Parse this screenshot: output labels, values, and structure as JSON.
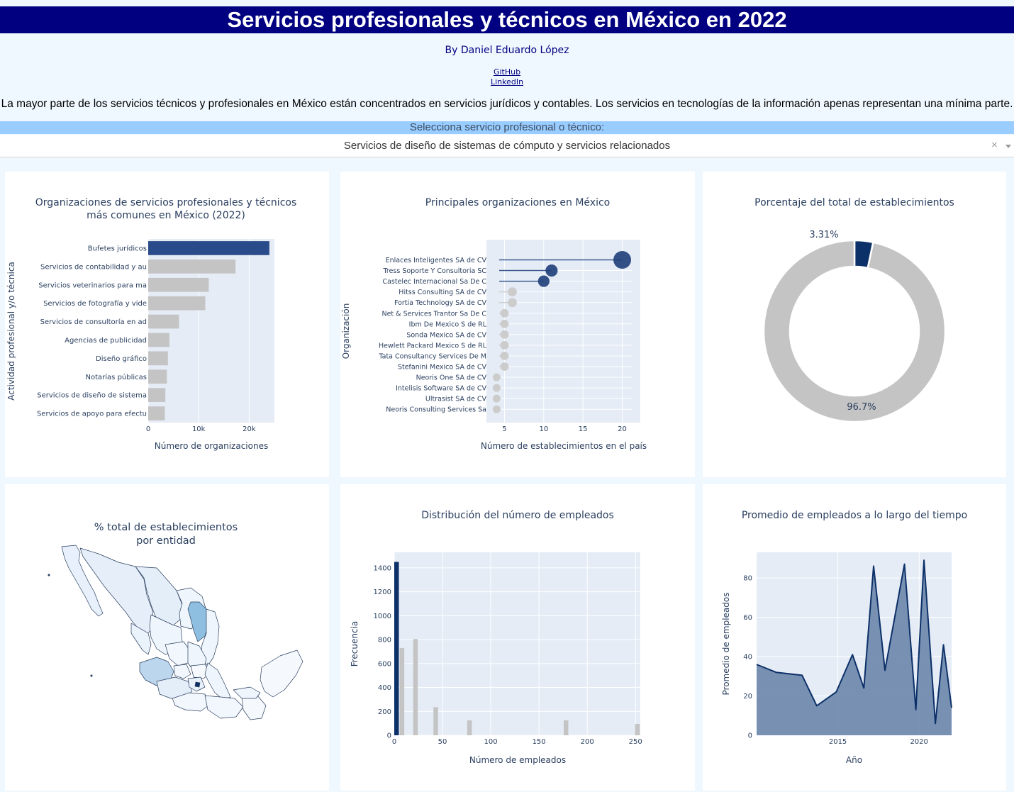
{
  "header": {
    "title": "Servicios profesionales y técnicos en México en 2022",
    "byline": "By Daniel Eduardo López",
    "github_label": "GitHub",
    "linkedin_label": "LinkedIn",
    "description": "La mayor parte de los servicios técnicos y profesionales en México están concentrados en servicios jurídicos y contables. Los servicios en tecnologías de la información apenas representan una mínima parte."
  },
  "selector": {
    "label": "Selecciona servicio profesional o técnico:",
    "value": "Servicios de diseño de sistemas de cómputo y servicios relacionados",
    "clear_glyph": "×"
  },
  "colors": {
    "highlight": "#0c3068",
    "bar_highlight": "#2a4b8a",
    "muted": "#c4c4c4",
    "plot_bg": "#e5ecf6",
    "title_bar": "#000080"
  },
  "chart_data": [
    {
      "type": "bar",
      "orientation": "horizontal",
      "title_lines": [
        "Organizaciones de servicios profesionales y técnicos",
        "más comunes en México (2022)"
      ],
      "xlabel": "Número de organizaciones",
      "ylabel": "Actividad profesional y/o técnica",
      "categories": [
        "Bufetes jurídicos",
        "Servicios de contabilidad y au",
        "Servicios veterinarios para ma",
        "Servicios de fotografía y vide",
        "Servicios de consultoría en ad",
        "Agencias de publicidad",
        "Diseño gráfico",
        "Notarías públicas",
        "Servicios de diseño de sistema",
        "Servicios de apoyo para efectu"
      ],
      "values": [
        24000,
        17300,
        12000,
        11300,
        6100,
        4200,
        3900,
        3700,
        3400,
        3300
      ],
      "highlight_index": 0,
      "xlim": [
        0,
        25000
      ],
      "xticks": [
        0,
        10000,
        20000
      ],
      "xtick_labels": [
        "0",
        "10k",
        "20k"
      ]
    },
    {
      "type": "scatter",
      "subtype": "lollipop",
      "title": "Principales organizaciones en México",
      "xlabel": "Número de establecimientos en el país",
      "ylabel": "Organización",
      "categories": [
        "Enlaces Inteligentes SA de CV",
        "Tress Soporte Y Consultoria SC",
        "Castelec Internacional Sa De C",
        "Hitss Consulting SA de CV",
        "Fortia Technology SA de CV",
        "Net & Services Trantor Sa De C",
        "Ibm De Mexico S de RL",
        "Sonda Mexico SA de CV",
        "Hewlett Packard Mexico S de RL",
        "Tata Consultancy Services De M",
        "Stefanini Mexico SA de CV",
        "Neoris One SA de CV",
        "Intelisis Software SA de CV",
        "Ultrasist SA de CV",
        "Neoris Consulting Services Sa"
      ],
      "values": [
        20,
        11,
        10,
        6,
        6,
        5,
        5,
        5,
        5,
        5,
        5,
        4,
        4,
        4,
        4
      ],
      "highlight_top": 3,
      "xlim": [
        2.7,
        22.3
      ],
      "xticks": [
        5,
        10,
        15,
        20
      ]
    },
    {
      "type": "pie",
      "subtype": "donut",
      "title": "Porcentaje del total de establecimientos",
      "slices": [
        {
          "label": "3.31%",
          "value": 3.31,
          "color": "#0c3068"
        },
        {
          "label": "96.7%",
          "value": 96.69,
          "color": "#c4c4c4"
        }
      ]
    },
    {
      "type": "map",
      "subtype": "choropleth",
      "title_lines": [
        "% total de establecimientos",
        "por entidad"
      ]
    },
    {
      "type": "bar",
      "subtype": "histogram",
      "title": "Distribución del número de empleados",
      "xlabel": "Número de empleados",
      "ylabel": "Frecuencia",
      "bins": [
        {
          "x": 0,
          "value": 1450,
          "highlight": true
        },
        {
          "x": 8,
          "value": 730
        },
        {
          "x": 22,
          "value": 805
        },
        {
          "x": 43,
          "value": 235
        },
        {
          "x": 78,
          "value": 125
        },
        {
          "x": 178,
          "value": 125
        },
        {
          "x": 252,
          "value": 95
        }
      ],
      "xlim": [
        0,
        255
      ],
      "ylim": [
        0,
        1530
      ],
      "xticks": [
        0,
        50,
        100,
        150,
        200,
        250
      ],
      "yticks": [
        0,
        200,
        400,
        600,
        800,
        1000,
        1200,
        1400
      ]
    },
    {
      "type": "area",
      "title": "Promedio de empleados a lo largo del tiempo",
      "xlabel": "Año",
      "ylabel": "Promedio de empleados",
      "x": [
        2010,
        2011.2,
        2012.8,
        2013.7,
        2014.9,
        2015.9,
        2016.6,
        2017.2,
        2017.9,
        2019.1,
        2019.8,
        2020.3,
        2021.0,
        2021.5,
        2022.0
      ],
      "y": [
        36,
        32,
        30.5,
        15,
        22,
        41,
        24,
        86,
        33,
        87,
        13,
        89,
        6,
        46,
        14
      ],
      "xlim": [
        2010,
        2022.0
      ],
      "ylim": [
        0,
        93
      ],
      "xticks": [
        2015,
        2020
      ],
      "yticks": [
        0,
        20,
        40,
        60,
        80
      ]
    }
  ]
}
